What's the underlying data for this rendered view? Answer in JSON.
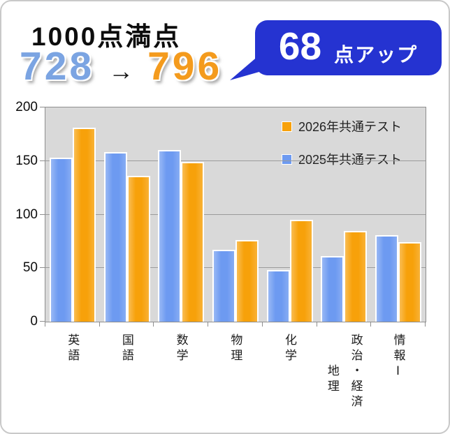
{
  "header": {
    "title": "1000点満点",
    "score_before": "728",
    "arrow": "→",
    "score_after": "796",
    "badge": {
      "points": "68",
      "suffix": "点アップ"
    }
  },
  "colors": {
    "score_before": "#7ba4e2",
    "score_after": "#f49b1d",
    "badge_bg": "#2533d1",
    "plot_bg": "#d9d9d9"
  },
  "chart_data": {
    "type": "bar",
    "title": "",
    "categories": [
      "英語",
      "国語",
      "数学",
      "物理",
      "化学",
      "地理・政治・経済",
      "情報Ⅰ"
    ],
    "category_label_lines": [
      [
        "英語"
      ],
      [
        "国語"
      ],
      [
        "数学"
      ],
      [
        "物理"
      ],
      [
        "化学"
      ],
      [
        "地理",
        "政治・経済"
      ],
      [
        "情報Ⅰ"
      ]
    ],
    "series": [
      {
        "name": "2026年共通テスト",
        "color": "#f7a10a",
        "values": [
          181,
          136,
          149,
          76,
          95,
          85,
          74
        ]
      },
      {
        "name": "2025年共通テスト",
        "color": "#6d9af1",
        "values": [
          153,
          158,
          160,
          67,
          48,
          61,
          81
        ]
      }
    ],
    "ylim": [
      0,
      200
    ],
    "yticks": [
      0,
      50,
      100,
      150,
      200
    ],
    "grid": true,
    "legend_position": "top-right"
  }
}
